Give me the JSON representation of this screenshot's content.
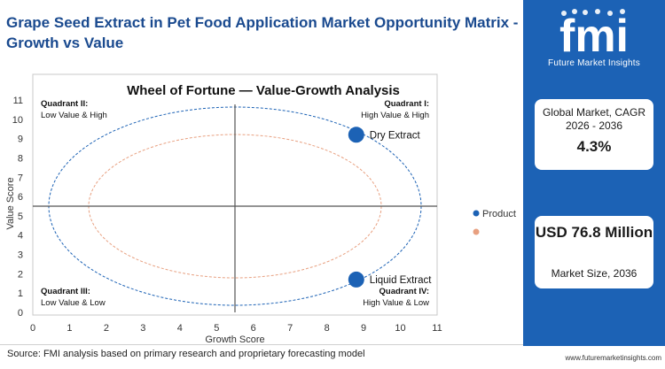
{
  "header": {
    "title": "Grape Seed Extract in Pet Food Application Market Opportunity Matrix - Growth vs Value"
  },
  "chart_data": {
    "type": "scatter",
    "title": "Wheel of Fortune — Value-Growth Analysis",
    "xlabel": "Growth Score",
    "ylabel": "Value Score",
    "xlim": [
      0,
      11
    ],
    "ylim": [
      0,
      11
    ],
    "xticks": [
      0,
      1,
      2,
      3,
      4,
      5,
      6,
      7,
      8,
      9,
      10,
      11
    ],
    "yticks": [
      0,
      1,
      2,
      3,
      4,
      5,
      6,
      7,
      8,
      9,
      10,
      11
    ],
    "dividers": {
      "x": 5.5,
      "y": 5.5
    },
    "grid": false,
    "legend_position": "right",
    "legend": [
      {
        "label": "Product",
        "color": "#1c62b5"
      },
      {
        "label": "",
        "color": "#e8a080"
      }
    ],
    "points": [
      {
        "label": "Dry Extract",
        "x": 8.8,
        "y": 9.2
      },
      {
        "label": "Liquid Extract",
        "x": 8.8,
        "y": 1.7
      }
    ],
    "quadrants": [
      {
        "title": "Quadrant II:",
        "subtitle": "Low Value & High",
        "corner": "top-left"
      },
      {
        "title": "Quadrant I:",
        "subtitle": "High Value & High",
        "corner": "top-right"
      },
      {
        "title": "Quadrant III:",
        "subtitle": "Low Value & Low",
        "corner": "bottom-left"
      },
      {
        "title": "Quadrant IV:",
        "subtitle": "High Value & Low",
        "corner": "bottom-right"
      }
    ],
    "colors": {
      "point": "#1c62b5",
      "outer_ring": "#1c62b5",
      "inner_ring": "#e8a080",
      "divider": "#555555"
    }
  },
  "source": "Source: FMI analysis based on primary research and proprietary forecasting model",
  "sidebar": {
    "logo_text": "fmi",
    "tagline": "Future Market Insights",
    "cagr_label": "Global Market, CAGR 2026 - 2036",
    "cagr_value": "4.3%",
    "size_value": "USD 76.8 Million",
    "size_label": "Market Size, 2036",
    "background": "#1c62b5"
  },
  "footer": {
    "url": "www.futuremarketinsights.com"
  }
}
